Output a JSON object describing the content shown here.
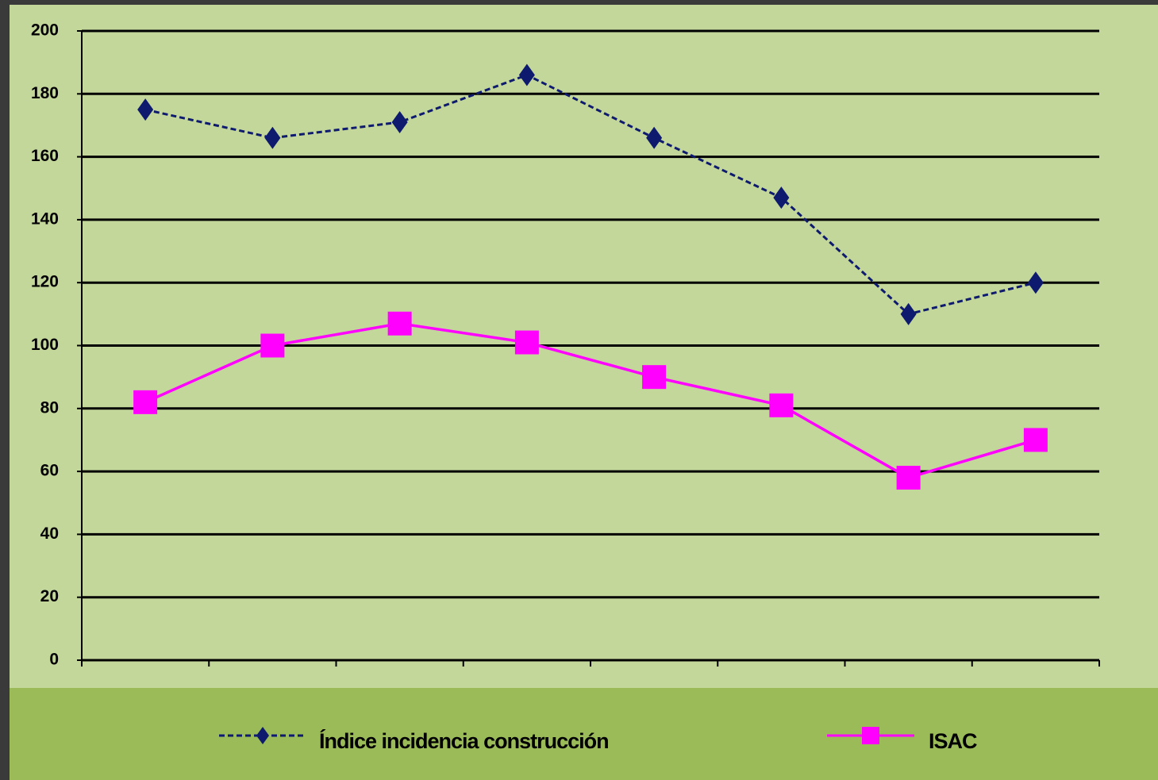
{
  "chart_data": {
    "type": "line",
    "categories": [
      null,
      null,
      null,
      null,
      null,
      null,
      null,
      null
    ],
    "series": [
      {
        "name": "Índice incidencia construcción",
        "color": "#0d1a6e",
        "dashed": true,
        "marker": "diamond",
        "values": [
          175,
          166,
          171,
          186,
          166,
          147,
          110,
          120
        ]
      },
      {
        "name": "ISAC",
        "color": "#ff00ff",
        "dashed": false,
        "marker": "square",
        "values": [
          82,
          100,
          107,
          101,
          90,
          81,
          58,
          70
        ]
      }
    ],
    "ylim": [
      0,
      200
    ],
    "yticks": [
      0,
      20,
      40,
      60,
      80,
      100,
      120,
      140,
      160,
      180,
      200
    ],
    "grid": true,
    "legend": "bottom"
  }
}
